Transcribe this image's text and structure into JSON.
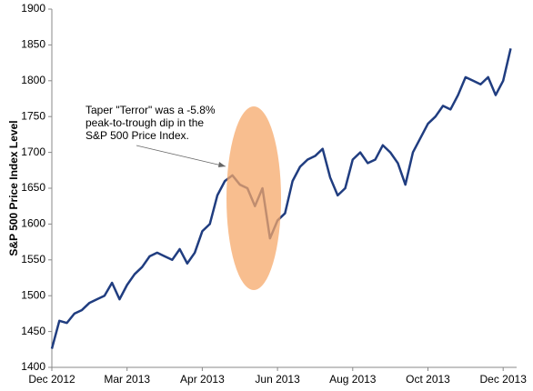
{
  "chart_data": {
    "type": "line",
    "y_label": "S&P 500 Price Index Level",
    "annotation": [
      "Taper \"Terror\" was a -5.8%",
      "peak-to-trough dip in the",
      "S&P 500 Price Index."
    ],
    "categories": [
      "Dec 2012",
      null,
      null,
      null,
      null,
      null,
      null,
      null,
      null,
      null,
      "Mar 2013",
      null,
      null,
      null,
      null,
      null,
      null,
      null,
      null,
      null,
      "Apr 2013",
      null,
      null,
      null,
      null,
      null,
      null,
      null,
      null,
      null,
      "Jun 2013",
      null,
      null,
      null,
      null,
      null,
      null,
      null,
      null,
      null,
      "Aug 2013",
      null,
      null,
      null,
      null,
      null,
      null,
      null,
      null,
      null,
      "Oct 2013",
      null,
      null,
      null,
      null,
      null,
      null,
      null,
      null,
      null,
      "Dec 2013",
      null
    ],
    "series": [
      {
        "color": "#203d80",
        "values": [
          1426,
          1465,
          1462,
          1475,
          1480,
          1490,
          1495,
          1500,
          1518,
          1495,
          1515,
          1530,
          1540,
          1555,
          1560,
          1555,
          1550,
          1565,
          1545,
          1560,
          1590,
          1600,
          1640,
          1660,
          1668,
          1655,
          1650,
          1625,
          1650,
          1580,
          1605,
          1615,
          1660,
          1680,
          1690,
          1695,
          1705,
          1665,
          1640,
          1650,
          1690,
          1700,
          1685,
          1690,
          1710,
          1700,
          1685,
          1655,
          1700,
          1720,
          1740,
          1750,
          1765,
          1760,
          1780,
          1805,
          1800,
          1795,
          1805,
          1780,
          1800,
          1845
        ]
      }
    ],
    "ylim": [
      1400,
      1900
    ],
    "yticks": [
      1400,
      1450,
      1500,
      1550,
      1600,
      1650,
      1700,
      1750,
      1800,
      1850,
      1900
    ],
    "highlight_color": "#f5a86a"
  }
}
